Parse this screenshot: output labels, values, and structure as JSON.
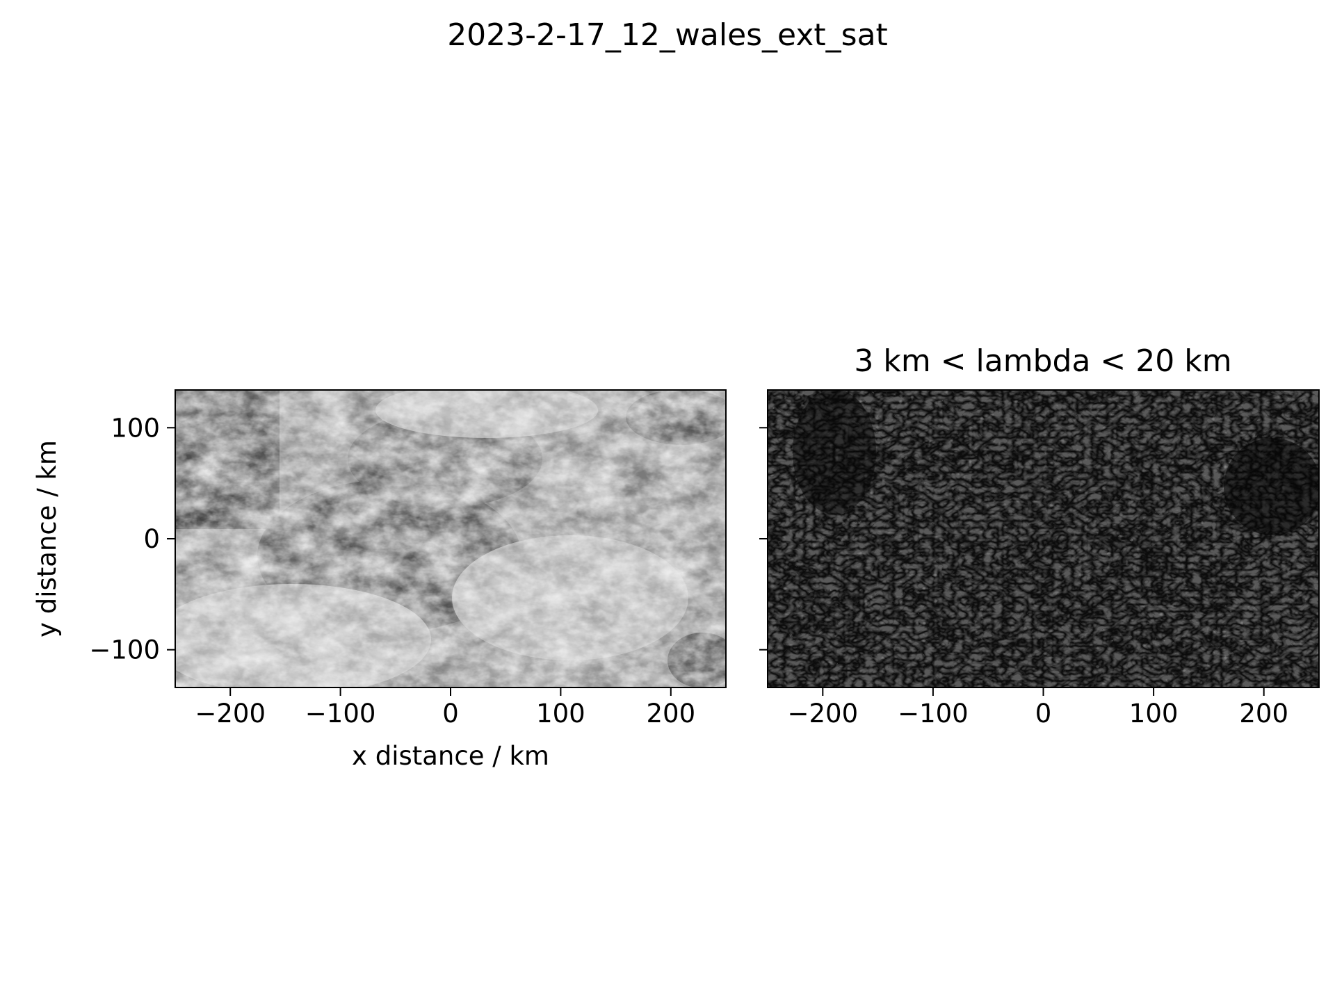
{
  "figure": {
    "suptitle": "2023-2-17_12_wales_ext_sat"
  },
  "chart_data": [
    {
      "type": "heatmap",
      "title": "",
      "xlabel": "x distance / km",
      "ylabel": "y distance / km",
      "xlim": [
        -250,
        250
      ],
      "ylim": [
        -134,
        134
      ],
      "x_ticks": [
        -200,
        -100,
        0,
        100,
        200
      ],
      "x_tick_labels": [
        "−200",
        "−100",
        "0",
        "100",
        "200"
      ],
      "y_ticks": [
        -100,
        0,
        100
      ],
      "y_tick_labels": [
        "−100",
        "0",
        "100"
      ],
      "colormap": "gray",
      "grid": false
    },
    {
      "type": "heatmap",
      "title": "3 km < lambda < 20 km",
      "xlabel": "",
      "ylabel": "",
      "xlim": [
        -250,
        250
      ],
      "ylim": [
        -134,
        134
      ],
      "x_ticks": [
        -200,
        -100,
        0,
        100,
        200
      ],
      "x_tick_labels": [
        "−200",
        "−100",
        "0",
        "100",
        "200"
      ],
      "y_ticks": [
        -100,
        0,
        100
      ],
      "y_tick_labels": [
        "",
        "",
        ""
      ],
      "colormap": "gray",
      "grid": false
    }
  ]
}
